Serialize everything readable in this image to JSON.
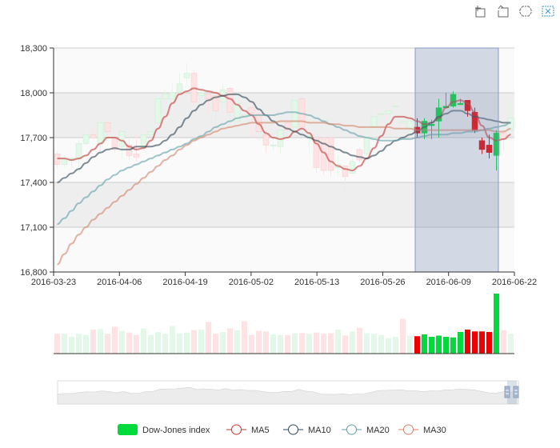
{
  "toolbox": {
    "items": [
      {
        "name": "brush-rect-icon",
        "color": "#666666"
      },
      {
        "name": "brush-polygon-icon",
        "color": "#666666"
      },
      {
        "name": "brush-keep-icon",
        "color": "#666666"
      },
      {
        "name": "brush-clear-icon",
        "color": "#3E98C5"
      }
    ]
  },
  "colors": {
    "up": "#00da3c",
    "down": "#ec0000",
    "up_faded": "#e3f8e8",
    "down_faded": "#fde3e3",
    "ma5": "#c23531",
    "ma10": "#2f4554",
    "ma20": "#61a0a8",
    "ma30": "#d48265",
    "brush_fill": "rgba(120,140,180,0.3)",
    "brush_stroke": "#8a9cc6",
    "split_area": [
      "#fafafa",
      "#eeeeee"
    ]
  },
  "legend": [
    {
      "label": "Dow-Jones index",
      "type": "rect",
      "color": "#00da3c"
    },
    {
      "label": "MA5",
      "type": "line",
      "color": "#c23531"
    },
    {
      "label": "MA10",
      "type": "line",
      "color": "#2f4554"
    },
    {
      "label": "MA20",
      "type": "line",
      "color": "#61a0a8"
    },
    {
      "label": "MA30",
      "type": "line",
      "color": "#d48265"
    }
  ],
  "chart_data": {
    "type": "candlestick",
    "title": "",
    "xlabel": "",
    "ylabel": "",
    "ylim": [
      16800,
      18300
    ],
    "y_ticks": [
      "16,800",
      "17,100",
      "17,400",
      "17,700",
      "18,000",
      "18,300"
    ],
    "y_tick_values": [
      16800,
      17100,
      17400,
      17700,
      18000,
      18300
    ],
    "x_ticks": [
      "2016-03-23",
      "2016-04-06",
      "2016-04-19",
      "2016-05-02",
      "2016-05-13",
      "2016-05-26",
      "2016-06-09",
      "2016-06-22"
    ],
    "x_tick_index": [
      0,
      9,
      18,
      27,
      36,
      45,
      54,
      63
    ],
    "brush_range_index": [
      50,
      61
    ],
    "candles": [
      [
        17590,
        17520,
        17500,
        17600
      ],
      [
        17520,
        17560,
        17500,
        17580
      ],
      [
        17545,
        17560,
        17490,
        17580
      ],
      [
        17555,
        17660,
        17470,
        17680
      ],
      [
        17660,
        17720,
        17650,
        17790
      ],
      [
        17720,
        17700,
        17690,
        17760
      ],
      [
        17660,
        17800,
        17590,
        17810
      ],
      [
        17800,
        17740,
        17730,
        17810
      ],
      [
        17690,
        17620,
        17600,
        17720
      ],
      [
        17640,
        17740,
        17560,
        17760
      ],
      [
        17650,
        17580,
        17550,
        17700
      ],
      [
        17590,
        17570,
        17540,
        17720
      ],
      [
        17630,
        17720,
        17610,
        17770
      ],
      [
        17720,
        17740,
        17710,
        17790
      ],
      [
        17800,
        17960,
        17740,
        17990
      ],
      [
        17960,
        17990,
        17950,
        18020
      ],
      [
        17960,
        18000,
        17860,
        18060
      ],
      [
        18010,
        18060,
        18000,
        18130
      ],
      [
        18100,
        18130,
        18050,
        18200
      ],
      [
        18130,
        17940,
        17920,
        18150
      ],
      [
        17980,
        18000,
        17940,
        18040
      ],
      [
        17990,
        17960,
        17860,
        18010
      ],
      [
        17980,
        17880,
        17750,
        18010
      ],
      [
        17940,
        18020,
        17910,
        18050
      ],
      [
        18030,
        17870,
        17780,
        18040
      ],
      [
        17810,
        17930,
        17800,
        18000
      ],
      [
        17850,
        17850,
        17780,
        17920
      ],
      [
        17900,
        17860,
        17700,
        17950
      ],
      [
        17860,
        17740,
        17680,
        17880
      ],
      [
        17720,
        17650,
        17600,
        17730
      ],
      [
        17650,
        17650,
        17610,
        17710
      ],
      [
        17640,
        17750,
        17590,
        17770
      ],
      [
        17800,
        17750,
        17700,
        17820
      ],
      [
        17770,
        17950,
        17760,
        17960
      ],
      [
        17960,
        17770,
        17740,
        17970
      ],
      [
        17700,
        17710,
        17590,
        17720
      ],
      [
        17700,
        17500,
        17460,
        17710
      ],
      [
        17700,
        17480,
        17450,
        17700
      ],
      [
        17700,
        17480,
        17440,
        17730
      ],
      [
        17500,
        17520,
        17440,
        17580
      ],
      [
        17510,
        17440,
        17340,
        17510
      ],
      [
        17460,
        17540,
        17450,
        17570
      ],
      [
        17620,
        17550,
        17530,
        17640
      ],
      [
        17590,
        17700,
        17560,
        17800
      ],
      [
        17770,
        17840,
        17700,
        17920
      ],
      [
        17860,
        17860,
        17820,
        17880
      ],
      [
        17860,
        17880,
        17840,
        17920
      ],
      [
        17910,
        17910,
        17890,
        17930
      ],
      [
        17800,
        17810,
        17760,
        17830
      ],
      [
        17760,
        17810,
        17700,
        17830
      ],
      [
        17770,
        17730,
        17700,
        17830
      ],
      [
        17730,
        17810,
        17690,
        17830
      ],
      [
        17780,
        17790,
        17690,
        17820
      ],
      [
        17810,
        17900,
        17700,
        17960
      ],
      [
        17900,
        17910,
        17900,
        18000
      ],
      [
        17910,
        17990,
        17900,
        18010
      ],
      [
        17920,
        17930,
        17920,
        17960
      ],
      [
        17950,
        17880,
        17840,
        17950
      ],
      [
        17870,
        17750,
        17730,
        17900
      ],
      [
        17680,
        17620,
        17590,
        17700
      ],
      [
        17650,
        17600,
        17560,
        17720
      ],
      [
        17580,
        17730,
        17480,
        17750
      ],
      [
        17730,
        17690,
        17610,
        17770
      ],
      [
        17750,
        17830,
        17730,
        17950
      ]
    ],
    "volume_relative": [
      0.33,
      0.33,
      0.28,
      0.33,
      0.31,
      0.4,
      0.41,
      0.33,
      0.45,
      0.38,
      0.35,
      0.31,
      0.42,
      0.31,
      0.36,
      0.33,
      0.46,
      0.34,
      0.35,
      0.39,
      0.4,
      0.53,
      0.33,
      0.36,
      0.42,
      0.39,
      0.54,
      0.31,
      0.38,
      0.37,
      0.32,
      0.31,
      0.31,
      0.34,
      0.34,
      0.33,
      0.35,
      0.33,
      0.34,
      0.4,
      0.3,
      0.37,
      0.43,
      0.34,
      0.33,
      0.31,
      0.26,
      0.28,
      0.58,
      0.3,
      0.29,
      0.32,
      0.28,
      0.3,
      0.28,
      0.27,
      0.36,
      0.4,
      0.37,
      0.37,
      0.36,
      1.0,
      0.39,
      0.33
    ],
    "volume_up": [
      false,
      true,
      true,
      true,
      true,
      false,
      true,
      false,
      false,
      true,
      false,
      false,
      true,
      true,
      true,
      true,
      true,
      true,
      true,
      false,
      true,
      false,
      false,
      true,
      false,
      true,
      false,
      false,
      false,
      false,
      true,
      true,
      false,
      true,
      false,
      true,
      false,
      false,
      false,
      true,
      false,
      true,
      false,
      true,
      true,
      true,
      true,
      true,
      false,
      true,
      false,
      true,
      true,
      true,
      true,
      true,
      true,
      false,
      false,
      false,
      false,
      true,
      false,
      true
    ],
    "series": [
      {
        "name": "MA5",
        "values": [
          17560,
          17560,
          17550,
          17560,
          17580,
          17620,
          17660,
          17700,
          17700,
          17680,
          17640,
          17620,
          17630,
          17680,
          17760,
          17840,
          17930,
          17990,
          18010,
          18030,
          18020,
          18010,
          18000,
          17980,
          17960,
          17920,
          17880,
          17850,
          17790,
          17730,
          17700,
          17690,
          17700,
          17740,
          17760,
          17730,
          17660,
          17600,
          17540,
          17510,
          17490,
          17480,
          17510,
          17560,
          17630,
          17710,
          17790,
          17840,
          17840,
          17830,
          17810,
          17790,
          17800,
          17830,
          17900,
          17940,
          17950,
          17930,
          17870,
          17780,
          17700,
          17680,
          17690,
          17720
        ]
      },
      {
        "name": "MA10",
        "values": [
          17400,
          17430,
          17460,
          17490,
          17530,
          17570,
          17600,
          17620,
          17630,
          17620,
          17620,
          17640,
          17640,
          17640,
          17650,
          17680,
          17720,
          17770,
          17830,
          17880,
          17920,
          17950,
          17970,
          17980,
          17990,
          17990,
          17970,
          17940,
          17890,
          17850,
          17810,
          17780,
          17760,
          17740,
          17720,
          17700,
          17680,
          17660,
          17640,
          17620,
          17600,
          17580,
          17570,
          17560,
          17580,
          17610,
          17650,
          17680,
          17700,
          17720,
          17740,
          17770,
          17800,
          17840,
          17860,
          17880,
          17880,
          17860,
          17840,
          17830,
          17820,
          17810,
          17800,
          17800
        ]
      },
      {
        "name": "MA20",
        "values": [
          17120,
          17160,
          17210,
          17260,
          17300,
          17340,
          17380,
          17420,
          17450,
          17480,
          17500,
          17520,
          17540,
          17560,
          17580,
          17600,
          17620,
          17640,
          17660,
          17690,
          17710,
          17740,
          17770,
          17790,
          17810,
          17830,
          17840,
          17850,
          17850,
          17850,
          17850,
          17860,
          17870,
          17870,
          17860,
          17850,
          17830,
          17810,
          17790,
          17770,
          17750,
          17730,
          17710,
          17700,
          17690,
          17680,
          17680,
          17680,
          17690,
          17690,
          17700,
          17710,
          17720,
          17720,
          17720,
          17730,
          17730,
          17740,
          17740,
          17750,
          17760,
          17770,
          17780,
          17800
        ]
      },
      {
        "name": "MA30",
        "values": [
          16850,
          16920,
          16990,
          17050,
          17100,
          17150,
          17190,
          17230,
          17270,
          17310,
          17350,
          17390,
          17430,
          17470,
          17510,
          17550,
          17580,
          17620,
          17650,
          17680,
          17700,
          17720,
          17740,
          17760,
          17770,
          17780,
          17790,
          17800,
          17800,
          17800,
          17800,
          17810,
          17810,
          17810,
          17810,
          17800,
          17800,
          17800,
          17790,
          17790,
          17780,
          17780,
          17770,
          17770,
          17770,
          17770,
          17770,
          17760,
          17760,
          17760,
          17750,
          17750,
          17750,
          17750,
          17750,
          17750,
          17750,
          17750,
          17750,
          17750,
          17750,
          17740,
          17740,
          17760
        ]
      }
    ]
  }
}
